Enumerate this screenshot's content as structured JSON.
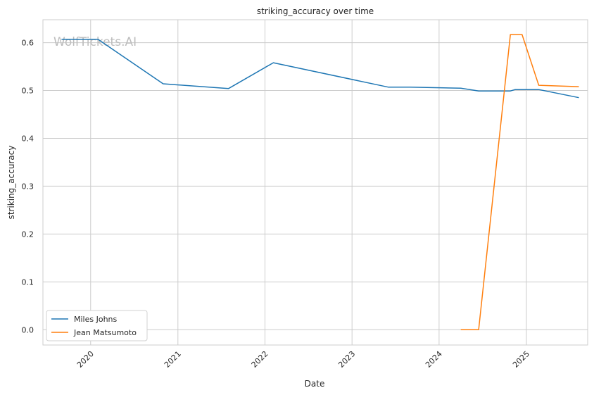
{
  "chart_data": {
    "type": "line",
    "title": "striking_accuracy over time",
    "xlabel": "Date",
    "ylabel": "striking_accuracy",
    "watermark": "WolfTickets.AI",
    "x_range": [
      "2019-06-15",
      "2025-09-15"
    ],
    "ylim": [
      -0.032,
      0.648
    ],
    "y_ticks": [
      0.0,
      0.1,
      0.2,
      0.3,
      0.4,
      0.5,
      0.6
    ],
    "y_tick_labels": [
      "0.0",
      "0.1",
      "0.2",
      "0.3",
      "0.4",
      "0.5",
      "0.6"
    ],
    "x_ticks": [
      "2020-01-01",
      "2021-01-01",
      "2022-01-01",
      "2023-01-01",
      "2024-01-01",
      "2025-01-01"
    ],
    "x_tick_labels": [
      "2020",
      "2021",
      "2022",
      "2023",
      "2024",
      "2025"
    ],
    "grid": true,
    "legend_position": "lower-left",
    "series": [
      {
        "name": "Miles Johns",
        "color": "#1f77b4",
        "points": [
          [
            "2019-09-01",
            0.607
          ],
          [
            "2020-02-01",
            0.607
          ],
          [
            "2020-10-31",
            0.514
          ],
          [
            "2021-08-01",
            0.504
          ],
          [
            "2022-02-05",
            0.558
          ],
          [
            "2023-06-03",
            0.507
          ],
          [
            "2023-09-01",
            0.507
          ],
          [
            "2024-04-01",
            0.505
          ],
          [
            "2024-06-15",
            0.499
          ],
          [
            "2024-10-26",
            0.499
          ],
          [
            "2024-11-15",
            0.502
          ],
          [
            "2025-02-22",
            0.502
          ],
          [
            "2025-08-09",
            0.485
          ]
        ]
      },
      {
        "name": "Jean Matsumoto",
        "color": "#ff7f0e",
        "points": [
          [
            "2024-04-01",
            0.0
          ],
          [
            "2024-06-15",
            0.0
          ],
          [
            "2024-10-26",
            0.617
          ],
          [
            "2024-12-14",
            0.617
          ],
          [
            "2025-02-22",
            0.511
          ],
          [
            "2025-08-09",
            0.508
          ]
        ]
      }
    ]
  }
}
